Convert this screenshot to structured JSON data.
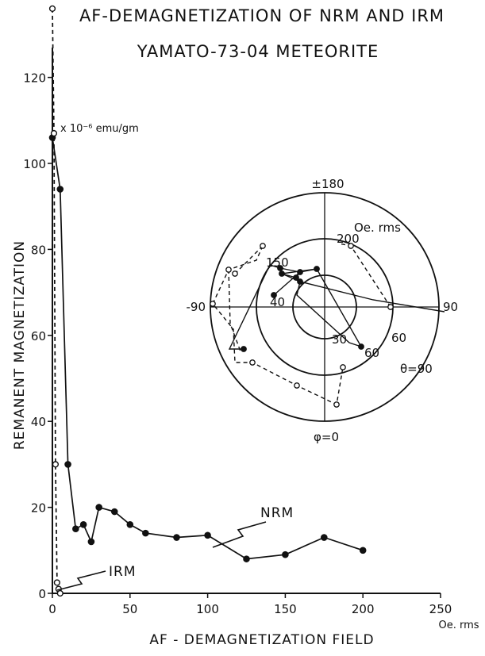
{
  "chart_data": {
    "type": "line",
    "title": "AF-DEMAGNETIZATION OF NRM AND IRM",
    "subtitle": "YAMATO-73-04 METEORITE",
    "xlabel": "AF - DEMAGNETIZATION FIELD",
    "xunit": "Oe. rms",
    "ylabel": "REMANENT MAGNETIZATION",
    "yunit": "x 10⁻⁶ emu/gm",
    "xlim": [
      0,
      250
    ],
    "ylim": [
      0,
      135
    ],
    "x_ticks": [
      "0",
      "50",
      "100",
      "150",
      "200",
      "250"
    ],
    "y_ticks": [
      "0",
      "20",
      "40",
      "60",
      "80",
      "100",
      "120"
    ],
    "series": [
      {
        "name": "NRM",
        "style": "solid",
        "marker": "filled",
        "x": [
          0,
          5,
          10,
          15,
          20,
          25,
          30,
          40,
          50,
          60,
          80,
          100,
          125,
          150,
          175,
          200
        ],
        "y": [
          106,
          94,
          30,
          15,
          16,
          12,
          20,
          19,
          16,
          14,
          13,
          13.5,
          8,
          9,
          13,
          10
        ]
      },
      {
        "name": "IRM",
        "style": "dashed",
        "marker": "open",
        "x": [
          0,
          1,
          2,
          3,
          4,
          5
        ],
        "y": [
          136,
          107,
          30,
          2.5,
          1,
          0
        ]
      }
    ],
    "annotations": [
      "NRM",
      "IRM"
    ],
    "inset": {
      "type": "polar",
      "top_label": "±180",
      "left_label": "-90",
      "right_label": "90",
      "bottom_label": "φ=0",
      "unit_label": "Oe. rms",
      "theta_label": "θ=90",
      "ring_labels": [
        "30",
        "60"
      ],
      "point_labels": [
        "150",
        "40",
        "60",
        "200"
      ],
      "rings_deg": [
        30,
        60,
        90
      ]
    }
  }
}
